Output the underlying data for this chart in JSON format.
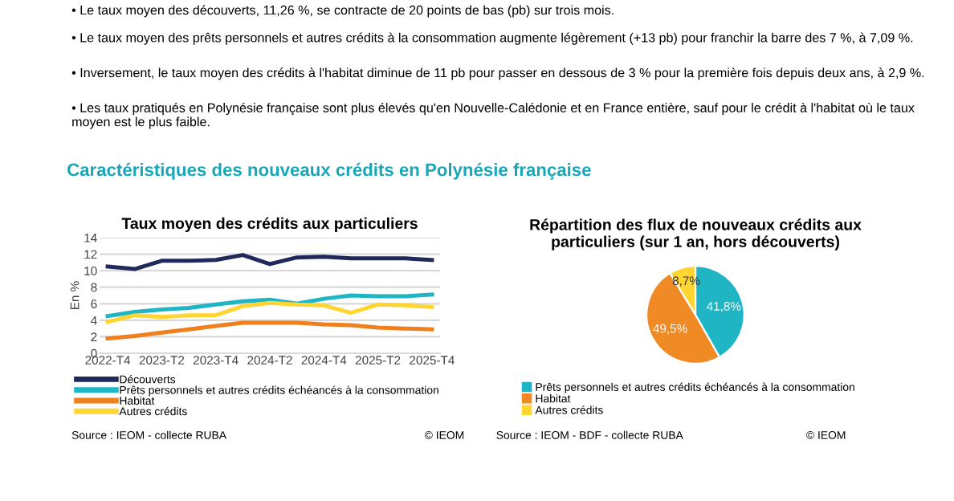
{
  "chart_data": [
    {
      "type": "line",
      "title": "Taux moyen des crédits aux particuliers",
      "ylabel": "En %",
      "categories": [
        "2022-T4",
        null,
        "2023-T2",
        null,
        "2023-T4",
        null,
        "2024-T2",
        null,
        "2024-T4",
        null,
        "2025-T2",
        null,
        "2025-T4"
      ],
      "series": [
        {
          "name": "Découverts",
          "color": "#1f2a5a",
          "values": [
            10.5,
            10.2,
            11.2,
            11.2,
            11.3,
            11.9,
            10.8,
            11.6,
            11.7,
            11.5,
            11.5,
            11.5,
            11.3
          ]
        },
        {
          "name": "Prêts personnels et autres crédits échéancés à la consommation",
          "color": "#1fb5c4",
          "values": [
            4.5,
            5.0,
            5.3,
            5.5,
            5.9,
            6.3,
            6.5,
            6.0,
            6.6,
            7.0,
            6.9,
            6.9,
            7.1
          ]
        },
        {
          "name": "Habitat",
          "color": "#f07f1d",
          "values": [
            1.8,
            2.1,
            2.5,
            2.9,
            3.3,
            3.7,
            3.7,
            3.7,
            3.5,
            3.4,
            3.1,
            3.0,
            2.9
          ]
        },
        {
          "name": "Autres crédits",
          "color": "#ffd531",
          "values": [
            3.8,
            4.6,
            4.4,
            4.6,
            4.6,
            5.7,
            6.1,
            5.9,
            5.8,
            4.9,
            5.9,
            5.8,
            5.6
          ]
        }
      ],
      "ylim": [
        0,
        14
      ],
      "yticks": [
        0,
        2,
        4,
        6,
        8,
        10,
        12,
        14
      ],
      "grid": "y",
      "legend": "bottom",
      "marker": "none",
      "line_style": "solid",
      "annotations": [
        "• Le taux moyen des découverts, 11,26 %, se contracte de 20 points de bas (pb) sur trois mois.",
        "• Le taux moyen des prêts personnels et autres crédits à la consommation augmente légèrement (+13 pb) pour franchir la barre des 7 %, à 7,09 %.",
        "• Inversement, le taux moyen des crédits à l'habitat diminue de 11 pb pour passer en dessous de 3 % pour la première fois depuis deux ans, à 2,9 %.",
        "• Les taux pratiqués en Polynésie française sont plus élevés qu'en Nouvelle-Calédonie et en France entière, sauf pour le crédit à l'habitat où le taux moyen est le plus faible.",
        "Caractéristiques des nouveaux crédits en Polynésie française",
        "Source : IEOM - collecte RUBA",
        "© IEOM"
      ]
    },
    {
      "type": "pie",
      "title": "Répartition des flux de nouveaux crédits aux\nparticuliers (sur 1 an, hors découverts)",
      "categories": [
        "Prêts personnels et autres crédits échéancés à la consommation",
        "Habitat",
        "Autres crédits"
      ],
      "values": [
        41.8,
        49.5,
        8.7
      ],
      "colors": [
        "#1fb5c4",
        "#f08a24",
        "#ffd531"
      ],
      "value_labels": [
        "41,8%",
        "49,5%",
        "8,7%"
      ],
      "legend": "bottom",
      "annotations": [
        "Source : IEOM - BDF - collecte RUBA",
        "© IEOM"
      ]
    }
  ]
}
